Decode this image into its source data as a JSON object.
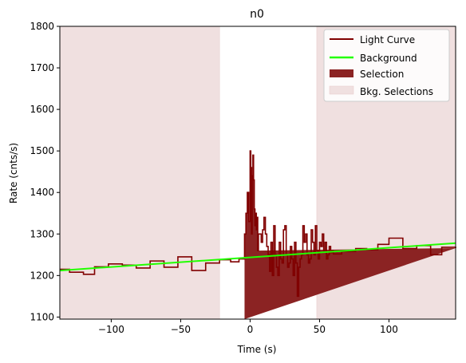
{
  "chart_data": {
    "type": "line",
    "title": "n0",
    "xlabel": "Time (s)",
    "ylabel": "Rate (cnts/s)",
    "xlim": [
      -137,
      148
    ],
    "ylim": [
      1095,
      1800
    ],
    "x_ticks": [
      -100,
      -50,
      0,
      50,
      100
    ],
    "y_ticks": [
      1100,
      1200,
      1300,
      1400,
      1500,
      1600,
      1700,
      1800
    ],
    "grid": false,
    "legend_position": "top-right",
    "legend": [
      {
        "label": "Light Curve",
        "kind": "line",
        "color": "#800000"
      },
      {
        "label": "Background",
        "kind": "line",
        "color": "#22ff00"
      },
      {
        "label": "Selection",
        "kind": "patch",
        "color": "#8b2323"
      },
      {
        "label": "Bkg. Selections",
        "kind": "patch",
        "color": "#f0e0e0"
      }
    ],
    "background_fit": {
      "x": [
        -137,
        148
      ],
      "y": [
        1212,
        1278
      ],
      "color": "#22ff00"
    },
    "selection": {
      "x_start": -4,
      "x_end": 6,
      "color": "#8b2323"
    },
    "background_selections": [
      {
        "x_start": -137,
        "x_end": -22
      },
      {
        "x_start": 48,
        "x_end": 148
      }
    ],
    "light_curve": {
      "color": "#800000",
      "edges": [
        -137,
        -130,
        -120,
        -112,
        -102,
        -92,
        -82,
        -72,
        -62,
        -52,
        -42,
        -32,
        -22,
        -14,
        -8,
        -4,
        -3,
        -2,
        -1,
        0,
        0.5,
        1,
        1.5,
        2,
        2.5,
        3,
        3.5,
        4,
        4.5,
        5,
        5.5,
        6,
        7,
        8,
        9,
        10,
        11,
        12,
        13,
        14,
        15,
        16,
        17,
        18,
        19,
        20,
        21,
        22,
        23,
        24,
        25,
        26,
        27,
        28,
        29,
        30,
        31,
        32,
        33,
        34,
        35,
        36,
        37,
        38,
        39,
        40,
        41,
        42,
        43,
        44,
        45,
        46,
        47,
        48,
        49,
        50,
        51,
        52,
        53,
        54,
        55,
        56,
        57,
        58,
        59,
        60,
        66,
        76,
        84,
        92,
        100,
        110,
        120,
        130,
        138,
        148
      ],
      "rates": [
        1215,
        1208,
        1203,
        1221,
        1228,
        1225,
        1218,
        1235,
        1220,
        1245,
        1212,
        1230,
        1238,
        1233,
        1240,
        1300,
        1350,
        1400,
        1330,
        1500,
        1460,
        1300,
        1440,
        1490,
        1430,
        1360,
        1320,
        1350,
        1310,
        1340,
        1260,
        1300,
        1300,
        1280,
        1310,
        1340,
        1300,
        1270,
        1250,
        1210,
        1280,
        1200,
        1320,
        1250,
        1220,
        1200,
        1280,
        1240,
        1230,
        1310,
        1320,
        1250,
        1220,
        1230,
        1270,
        1240,
        1200,
        1280,
        1230,
        1150,
        1220,
        1240,
        1250,
        1320,
        1280,
        1300,
        1250,
        1230,
        1240,
        1310,
        1280,
        1250,
        1320,
        1260,
        1240,
        1280,
        1270,
        1300,
        1260,
        1280,
        1240,
        1250,
        1270,
        1255,
        1260,
        1252,
        1258,
        1265,
        1262,
        1275,
        1290,
        1265,
        1272,
        1250,
        1268,
        1266
      ]
    }
  }
}
